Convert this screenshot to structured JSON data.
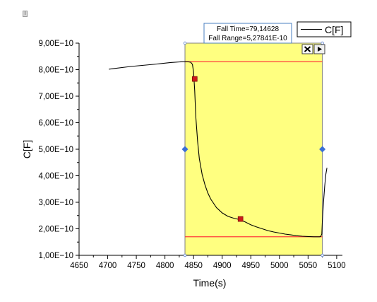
{
  "corner_label": "I",
  "chart_data": {
    "type": "line",
    "xlabel": "Time(s)",
    "ylabel": "C[F]",
    "xlim": [
      4650,
      5110
    ],
    "ylim": [
      1e-10,
      9e-10
    ],
    "x_ticks": [
      "4650",
      "4700",
      "4750",
      "4800",
      "4850",
      "4900",
      "4950",
      "5000",
      "5050",
      "5100"
    ],
    "x_tick_values": [
      4650,
      4700,
      4750,
      4800,
      4850,
      4900,
      4950,
      5000,
      5050,
      5100
    ],
    "y_ticks": [
      "1,00E−10",
      "2,00E−10",
      "3,00E−10",
      "4,00E−10",
      "5,00E−10",
      "6,00E−10",
      "7,00E−10",
      "8,00E−10",
      "9,00E−10"
    ],
    "y_tick_values": [
      1e-10,
      2e-10,
      3e-10,
      4e-10,
      5e-10,
      6e-10,
      7e-10,
      8e-10,
      9e-10
    ],
    "series": [
      {
        "name": "C[F]",
        "color": "#000000",
        "x": [
          4702,
          4740,
          4780,
          4810,
          4830,
          4840,
          4845,
          4848,
          4850,
          4852,
          4854,
          4857,
          4860,
          4865,
          4870,
          4875,
          4880,
          4890,
          4900,
          4910,
          4920,
          4930,
          4940,
          4950,
          4960,
          4970,
          4980,
          4990,
          5000,
          5010,
          5020,
          5030,
          5040,
          5050,
          5060,
          5070,
          5072,
          5074,
          5075,
          5077,
          5079,
          5081,
          5083
        ],
        "y": [
          8.02e-10,
          8.12e-10,
          8.2e-10,
          8.27e-10,
          8.3e-10,
          8.3e-10,
          8.28e-10,
          8.2e-10,
          7.9e-10,
          7.2e-10,
          6.2e-10,
          5.3e-10,
          4.65e-10,
          4.05e-10,
          3.65e-10,
          3.35e-10,
          3.12e-10,
          2.8e-10,
          2.6e-10,
          2.47e-10,
          2.4e-10,
          2.35e-10,
          2.26e-10,
          2.15e-10,
          2.07e-10,
          2e-10,
          1.93e-10,
          1.88e-10,
          1.84e-10,
          1.8e-10,
          1.77e-10,
          1.74e-10,
          1.72e-10,
          1.71e-10,
          1.7e-10,
          1.7e-10,
          1.71e-10,
          1.8e-10,
          2.3e-10,
          3e-10,
          3.6e-10,
          4.05e-10,
          4.3e-10
        ]
      }
    ],
    "region": {
      "x_start": 4835,
      "x_end": 5075,
      "color": "#ffff80",
      "border_color": "#808080"
    },
    "levels": [
      {
        "y": 8.3e-10,
        "color": "#ff3b3b"
      },
      {
        "y": 1.7e-10,
        "color": "#ff3b3b"
      }
    ],
    "markers": [
      {
        "x": 4852,
        "y": 7.65e-10,
        "color": "#cc1a1a"
      },
      {
        "x": 4932,
        "y": 2.37e-10,
        "color": "#cc1a1a"
      }
    ],
    "handles": [
      {
        "side": "left",
        "y": 5e-10,
        "color": "#3b6fd4"
      },
      {
        "side": "right",
        "y": 5e-10,
        "color": "#3b6fd4"
      }
    ],
    "annotations": [
      "Fall Time=79,14628",
      "Fall Range=5,27841E-10"
    ],
    "legend": {
      "entries": [
        "C[F]"
      ],
      "placement": "top-right"
    },
    "grid": false
  },
  "icons": {
    "close": "close-icon",
    "expand": "play-arrow-icon"
  }
}
